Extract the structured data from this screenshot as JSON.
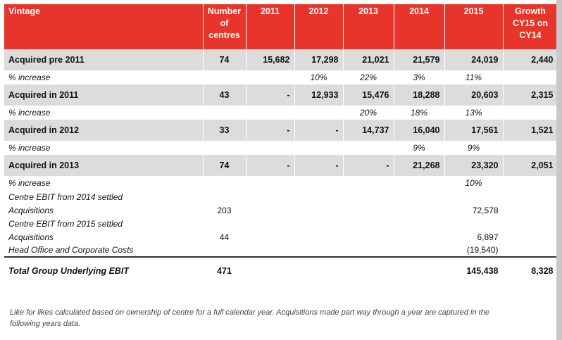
{
  "header": {
    "vintage": "Vintage",
    "centres": "Number of centres",
    "y2011": "2011",
    "y2012": "2012",
    "y2013": "2013",
    "y2014": "2014",
    "y2015": "2015",
    "growth": "Growth CY15 on CY14"
  },
  "rows": {
    "pre2011": {
      "label": "Acquired pre 2011",
      "centres": "74",
      "v2011": "15,682",
      "v2012": "17,298",
      "v2013": "21,021",
      "v2014": "21,579",
      "v2015": "24,019",
      "growth": "2,440"
    },
    "pre2011_pct": {
      "label": "% increase",
      "p2012": "10%",
      "p2013": "22%",
      "p2014": "3%",
      "p2015": "11%"
    },
    "a2011": {
      "label": "Acquired in 2011",
      "centres": "43",
      "v2011": "-",
      "v2012": "12,933",
      "v2013": "15,476",
      "v2014": "18,288",
      "v2015": "20,603",
      "growth": "2,315"
    },
    "a2011_pct": {
      "label": "% increase",
      "p2013": "20%",
      "p2014": "18%",
      "p2015": "13%"
    },
    "a2012": {
      "label": "Acquired in 2012",
      "centres": "33",
      "v2011": "-",
      "v2012": "-",
      "v2013": "14,737",
      "v2014": "16,040",
      "v2015": "17,561",
      "growth": "1,521"
    },
    "a2012_pct": {
      "label": "% increase",
      "p2014": "9%",
      "p2015": "9%"
    },
    "a2013": {
      "label": "Acquired in 2013",
      "centres": "74",
      "v2011": "-",
      "v2012": "-",
      "v2013": "-",
      "v2014": "21,268",
      "v2015": "23,320",
      "growth": "2,051"
    },
    "a2013_pct": {
      "label": "% increase",
      "p2015": "10%"
    },
    "ebit2014": {
      "label1": "Centre EBIT from 2014 settled",
      "label2": "Acquisitions",
      "centres": "203",
      "v2015": "72,578"
    },
    "ebit2015": {
      "label1": "Centre EBIT from 2015 settled",
      "label2": "Acquisitions",
      "centres": "44",
      "v2015": "6,897"
    },
    "headoffice": {
      "label": "Head Office and Corporate Costs",
      "v2015": "(19,540)"
    },
    "total": {
      "label": "Total Group Underlying EBIT",
      "centres": "471",
      "v2015": "145,438",
      "growth": "8,328"
    }
  },
  "footnote": "Like for likes calculated based on ownership of centre for a full calendar year. Acquisitions made part way through a year are captured in the following years data.",
  "colors": {
    "header_bg": "#e8352b",
    "row_bg": "#dcdcdc"
  }
}
